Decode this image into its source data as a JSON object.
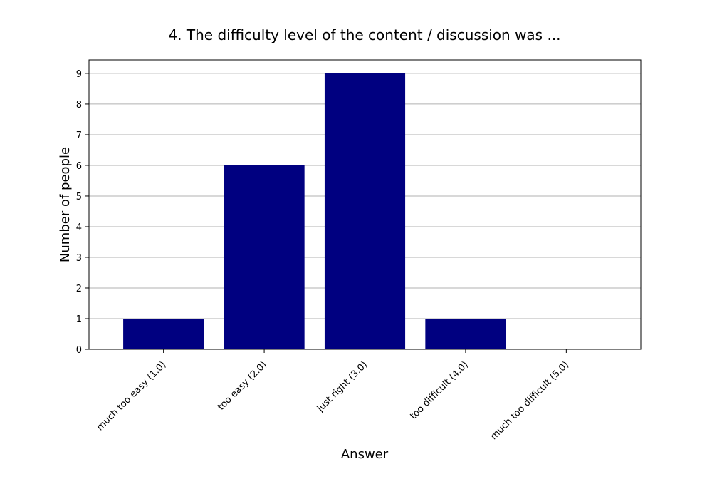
{
  "colors": {
    "bar": "#000080",
    "grid": "#b0b0b0",
    "axis": "#000000",
    "background": "#ffffff"
  },
  "chart_data": {
    "type": "bar",
    "title": "4. The difficulty level of the content / discussion was ...",
    "xlabel": "Answer",
    "ylabel": "Number of people",
    "categories": [
      "much too easy (1.0)",
      "too easy (2.0)",
      "just right (3.0)",
      "too difficult (4.0)",
      "much too difficult (5.0)"
    ],
    "values": [
      1,
      6,
      9,
      1,
      0
    ],
    "ylim": [
      0,
      9.44
    ],
    "yticks": [
      0,
      1,
      2,
      3,
      4,
      5,
      6,
      7,
      8,
      9
    ],
    "grid": "horizontal",
    "legend": "none"
  }
}
